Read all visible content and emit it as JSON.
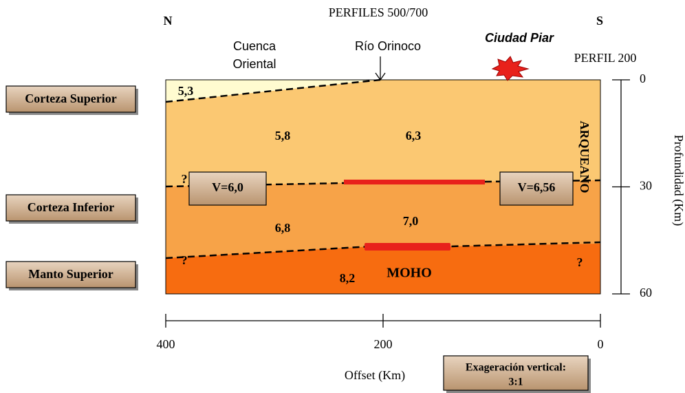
{
  "header": {
    "north": "N",
    "south": "S",
    "profiles": "PERFILES 500/700",
    "profile_200": "PERFIL 200"
  },
  "annotations": {
    "basin": [
      "Cuenca",
      "Oriental"
    ],
    "river": "Río Orinoco",
    "city": "Ciudad Piar",
    "archean": "ARQUEANO",
    "moho": "MOHO"
  },
  "layers": [
    "Corteza Superior",
    "Corteza Inferior",
    "Manto Superior"
  ],
  "velocities": [
    "5,3",
    "5,8",
    "6,3",
    "6,8",
    "7,0",
    "8,2"
  ],
  "boxes": [
    "V=6,0",
    "V=6,56"
  ],
  "question_marks": [
    "?",
    "?",
    "?"
  ],
  "depth_axis": {
    "label": "Profundidad (Km)",
    "range": [
      0,
      60
    ],
    "ticks": [
      0,
      30,
      60
    ]
  },
  "offset_axis": {
    "label": "Offset (Km)",
    "range": [
      400,
      0
    ],
    "ticks": [
      400,
      200,
      0
    ]
  },
  "note": [
    "Exageración vertical:",
    "3:1"
  ]
}
